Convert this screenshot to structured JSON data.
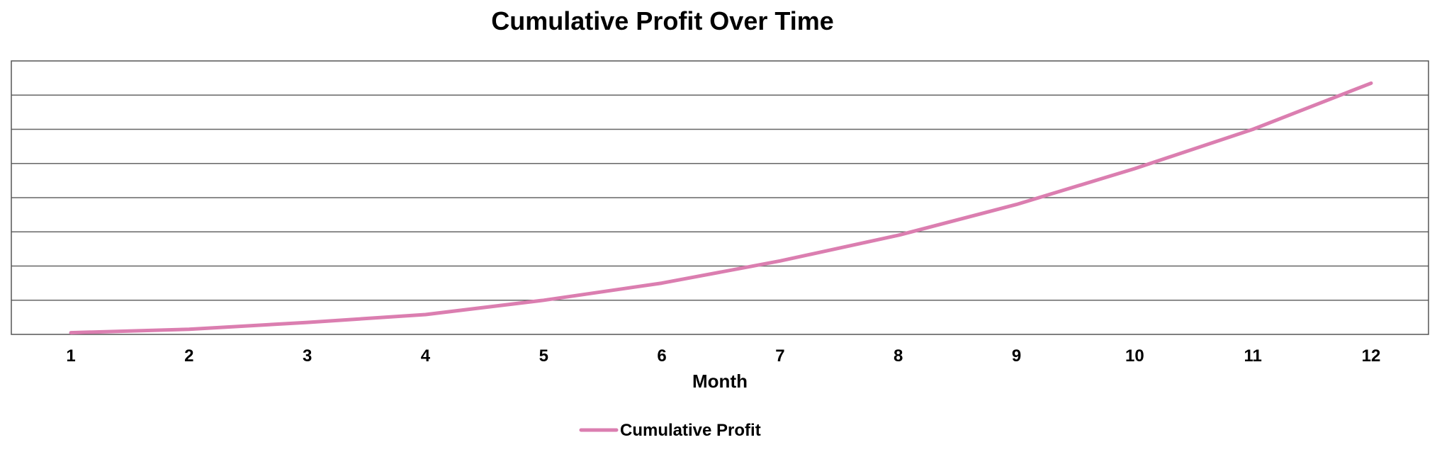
{
  "chart_data": {
    "type": "line",
    "title": "Cumulative Profit Over Time",
    "xlabel": "Month",
    "ylabel": "",
    "categories": [
      "1",
      "2",
      "3",
      "4",
      "5",
      "6",
      "7",
      "8",
      "9",
      "10",
      "11",
      "12"
    ],
    "series": [
      {
        "name": "Cumulative Profit",
        "color": "#DB7EB0",
        "values": [
          0.05,
          0.15,
          0.35,
          0.58,
          1.0,
          1.5,
          2.15,
          2.9,
          3.8,
          4.85,
          6.0,
          7.35
        ]
      }
    ],
    "ylim": [
      0,
      8
    ],
    "grid": true,
    "legend": "bottom-center"
  }
}
